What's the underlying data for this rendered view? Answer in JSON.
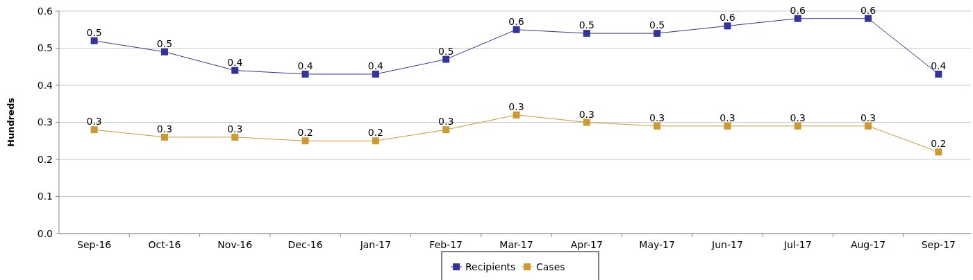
{
  "chart_data": {
    "type": "line",
    "ylabel": "Hundreds",
    "categories": [
      "Sep-16",
      "Oct-16",
      "Nov-16",
      "Dec-16",
      "Jan-17",
      "Feb-17",
      "Mar-17",
      "Apr-17",
      "May-17",
      "Jun-17",
      "Jul-17",
      "Aug-17",
      "Sep-17"
    ],
    "series": [
      {
        "name": "Recipients",
        "color": "#333399",
        "values": [
          0.52,
          0.49,
          0.44,
          0.43,
          0.43,
          0.47,
          0.55,
          0.54,
          0.54,
          0.56,
          0.58,
          0.58,
          0.43
        ],
        "value_labels": [
          "0.5",
          "0.5",
          "0.4",
          "0.4",
          "0.4",
          "0.5",
          "0.6",
          "0.5",
          "0.5",
          "0.6",
          "0.6",
          "0.6",
          "0.4"
        ]
      },
      {
        "name": "Cases",
        "color": "#cc9933",
        "values": [
          0.28,
          0.26,
          0.26,
          0.25,
          0.25,
          0.28,
          0.32,
          0.3,
          0.29,
          0.29,
          0.29,
          0.29,
          0.22
        ],
        "value_labels": [
          "0.3",
          "0.3",
          "0.3",
          "0.2",
          "0.2",
          "0.3",
          "0.3",
          "0.3",
          "0.3",
          "0.3",
          "0.3",
          "0.3",
          "0.2"
        ]
      }
    ],
    "ylim": [
      0,
      0.6
    ],
    "yticks": [
      {
        "value": 0,
        "label": "0.0"
      },
      0.1,
      0.2,
      0.3,
      0.4,
      0.5,
      0.6
    ],
    "grid": "y",
    "legend": "bottom",
    "marker": "square",
    "line_style": "solid"
  }
}
